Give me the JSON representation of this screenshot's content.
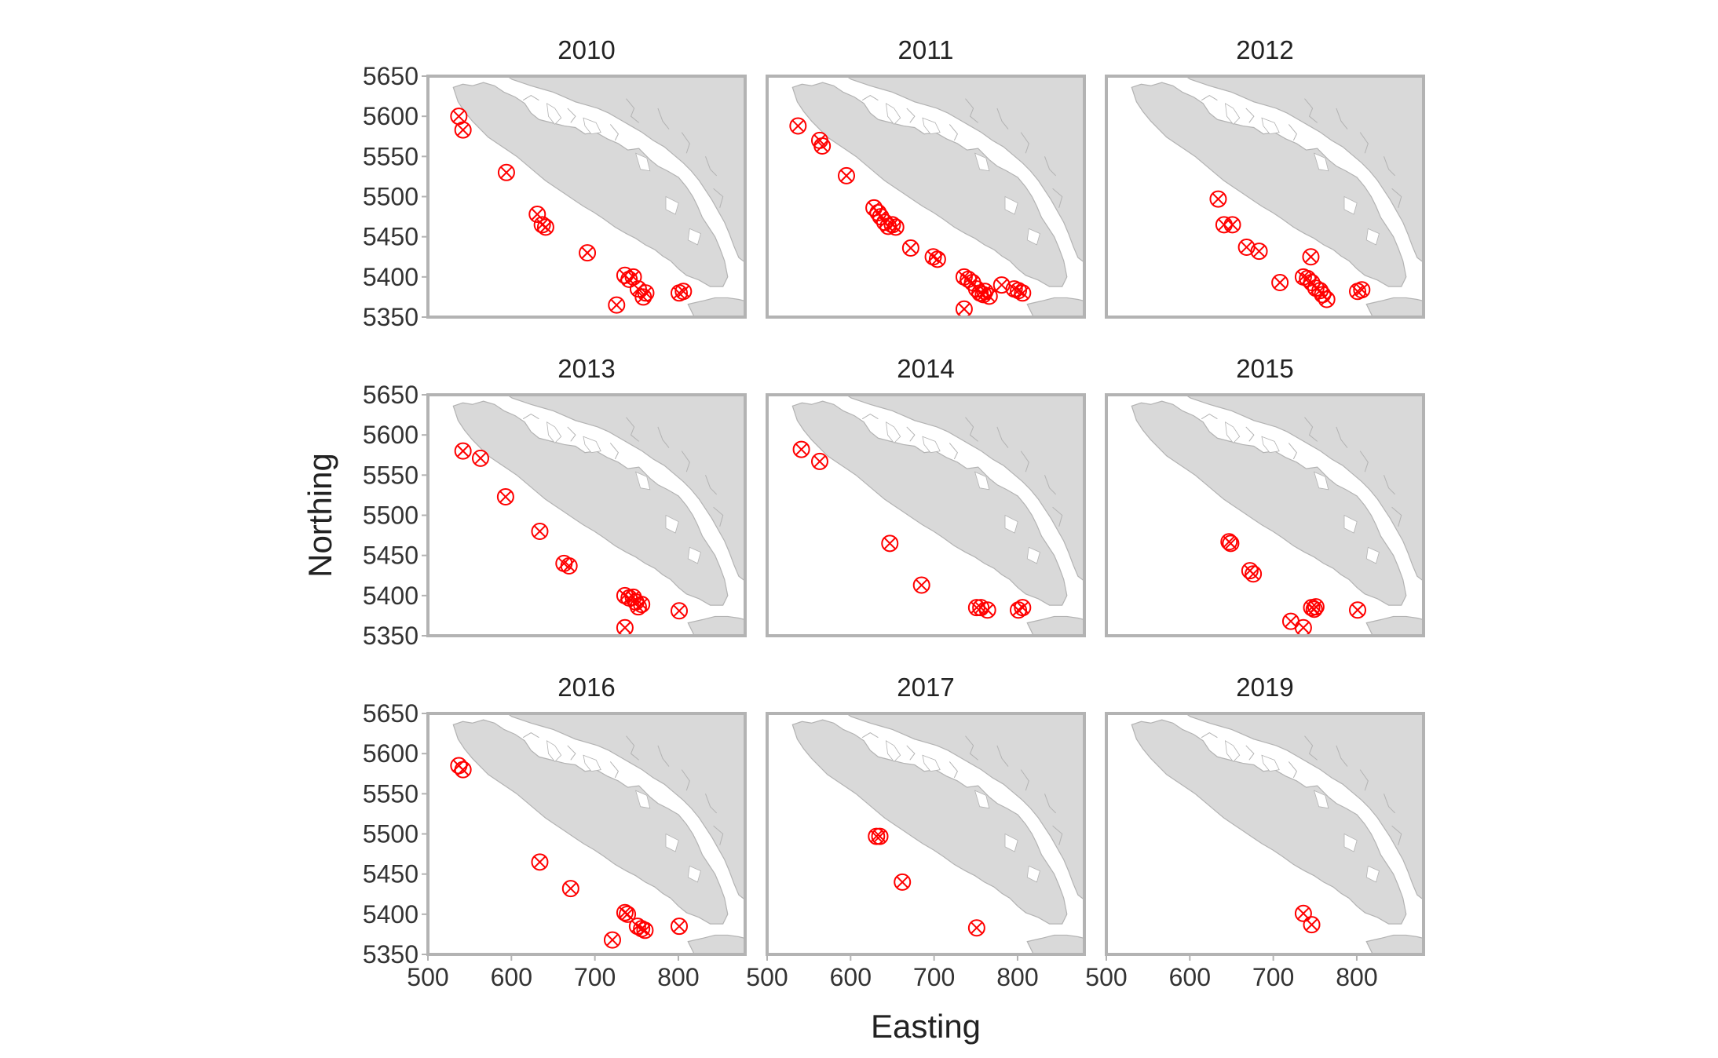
{
  "chart_data": {
    "type": "scatter",
    "xlabel": "Easting",
    "ylabel": "Northing",
    "xlim": [
      500,
      880
    ],
    "ylim": [
      5350,
      5650
    ],
    "x_ticks": [
      500,
      600,
      700,
      800
    ],
    "y_ticks": [
      5350,
      5400,
      5450,
      5500,
      5550,
      5600,
      5650
    ],
    "x_tick_labels": [
      "500",
      "600",
      "700",
      "800"
    ],
    "y_tick_labels": [
      "5350",
      "5400",
      "5450",
      "5500",
      "5550",
      "5600",
      "5650"
    ],
    "marker": "circle-x",
    "colors": {
      "marker": "#ff0000",
      "land": "#d9d9d9",
      "land_edge": "#b3b3b3",
      "panel_border": "#b3b3b3",
      "background": "#ffffff"
    },
    "panels": [
      {
        "title": "2010",
        "points": [
          [
            537,
            5600
          ],
          [
            542,
            5583
          ],
          [
            594,
            5530
          ],
          [
            631,
            5478
          ],
          [
            637,
            5465
          ],
          [
            641,
            5462
          ],
          [
            691,
            5430
          ],
          [
            736,
            5402
          ],
          [
            741,
            5397
          ],
          [
            746,
            5400
          ],
          [
            752,
            5385
          ],
          [
            758,
            5375
          ],
          [
            761,
            5380
          ],
          [
            801,
            5380
          ],
          [
            806,
            5382
          ],
          [
            726,
            5365
          ]
        ]
      },
      {
        "title": "2011",
        "points": [
          [
            537,
            5588
          ],
          [
            563,
            5570
          ],
          [
            566,
            5563
          ],
          [
            595,
            5526
          ],
          [
            628,
            5486
          ],
          [
            633,
            5480
          ],
          [
            636,
            5475
          ],
          [
            641,
            5468
          ],
          [
            645,
            5463
          ],
          [
            650,
            5465
          ],
          [
            654,
            5462
          ],
          [
            672,
            5436
          ],
          [
            699,
            5425
          ],
          [
            704,
            5422
          ],
          [
            736,
            5400
          ],
          [
            741,
            5397
          ],
          [
            746,
            5393
          ],
          [
            751,
            5385
          ],
          [
            755,
            5380
          ],
          [
            759,
            5378
          ],
          [
            761,
            5382
          ],
          [
            766,
            5376
          ],
          [
            781,
            5390
          ],
          [
            796,
            5385
          ],
          [
            801,
            5383
          ],
          [
            806,
            5380
          ],
          [
            736,
            5360
          ]
        ]
      },
      {
        "title": "2012",
        "points": [
          [
            634,
            5497
          ],
          [
            641,
            5465
          ],
          [
            651,
            5465
          ],
          [
            668,
            5437
          ],
          [
            683,
            5432
          ],
          [
            708,
            5393
          ],
          [
            736,
            5400
          ],
          [
            741,
            5398
          ],
          [
            746,
            5393
          ],
          [
            751,
            5386
          ],
          [
            756,
            5383
          ],
          [
            759,
            5378
          ],
          [
            764,
            5372
          ],
          [
            801,
            5382
          ],
          [
            806,
            5384
          ],
          [
            745,
            5425
          ]
        ]
      },
      {
        "title": "2013",
        "points": [
          [
            542,
            5580
          ],
          [
            563,
            5571
          ],
          [
            593,
            5523
          ],
          [
            634,
            5480
          ],
          [
            663,
            5440
          ],
          [
            669,
            5437
          ],
          [
            736,
            5400
          ],
          [
            741,
            5397
          ],
          [
            746,
            5398
          ],
          [
            749,
            5392
          ],
          [
            752,
            5386
          ],
          [
            756,
            5389
          ],
          [
            801,
            5381
          ],
          [
            736,
            5360
          ]
        ]
      },
      {
        "title": "2014",
        "points": [
          [
            541,
            5582
          ],
          [
            563,
            5567
          ],
          [
            647,
            5465
          ],
          [
            685,
            5413
          ],
          [
            751,
            5385
          ],
          [
            756,
            5385
          ],
          [
            764,
            5382
          ],
          [
            801,
            5382
          ],
          [
            806,
            5385
          ]
        ]
      },
      {
        "title": "2015",
        "points": [
          [
            647,
            5467
          ],
          [
            649,
            5465
          ],
          [
            672,
            5431
          ],
          [
            676,
            5427
          ],
          [
            721,
            5368
          ],
          [
            736,
            5360
          ],
          [
            746,
            5385
          ],
          [
            749,
            5383
          ],
          [
            751,
            5386
          ],
          [
            801,
            5382
          ]
        ]
      },
      {
        "title": "2016",
        "points": [
          [
            537,
            5585
          ],
          [
            542,
            5580
          ],
          [
            634,
            5465
          ],
          [
            671,
            5432
          ],
          [
            736,
            5402
          ],
          [
            739,
            5400
          ],
          [
            751,
            5385
          ],
          [
            756,
            5382
          ],
          [
            760,
            5380
          ],
          [
            801,
            5385
          ],
          [
            721,
            5368
          ]
        ]
      },
      {
        "title": "2017",
        "points": [
          [
            631,
            5497
          ],
          [
            635,
            5497
          ],
          [
            662,
            5440
          ],
          [
            751,
            5383
          ]
        ]
      },
      {
        "title": "2019",
        "points": [
          [
            736,
            5401
          ],
          [
            746,
            5387
          ]
        ]
      }
    ]
  }
}
